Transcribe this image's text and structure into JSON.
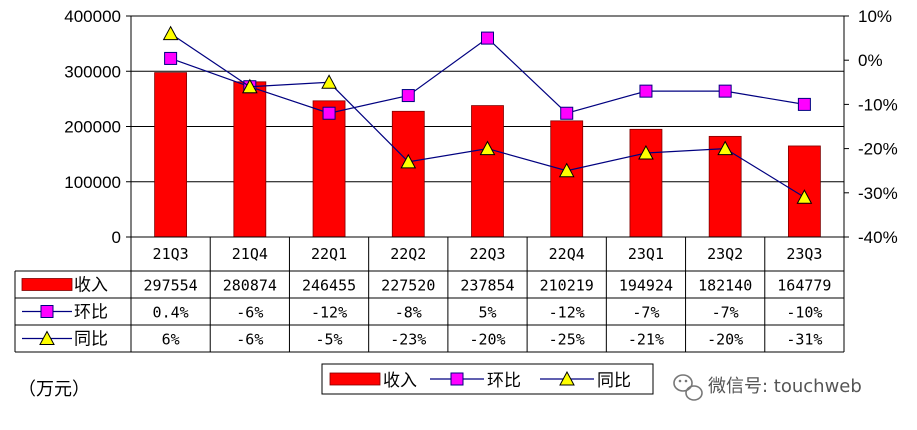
{
  "chart_data": {
    "type": "bar",
    "categories": [
      "21Q3",
      "21Q4",
      "22Q1",
      "22Q2",
      "22Q3",
      "22Q4",
      "23Q1",
      "23Q2",
      "23Q3"
    ],
    "series": [
      {
        "name": "收入",
        "kind": "bar",
        "axis": "left",
        "color": "#ff0000",
        "values": [
          297554,
          280874,
          246455,
          227520,
          237854,
          210219,
          194924,
          182140,
          164779
        ],
        "labels": [
          "297554",
          "280874",
          "246455",
          "227520",
          "237854",
          "210219",
          "194924",
          "182140",
          "164779"
        ]
      },
      {
        "name": "环比",
        "kind": "line",
        "axis": "right",
        "marker": "square",
        "color": "#ff00ff",
        "values": [
          0.4,
          -6,
          -12,
          -8,
          5,
          -12,
          -7,
          -7,
          -10
        ],
        "labels": [
          "0.4%",
          "-6%",
          "-12%",
          "-8%",
          "5%",
          "-12%",
          "-7%",
          "-7%",
          "-10%"
        ]
      },
      {
        "name": "同比",
        "kind": "line",
        "axis": "right",
        "marker": "triangle",
        "color": "#ffff00",
        "values": [
          6,
          -6,
          -5,
          -23,
          -20,
          -25,
          -21,
          -20,
          -31
        ],
        "labels": [
          "6%",
          "-6%",
          "-5%",
          "-23%",
          "-20%",
          "-25%",
          "-21%",
          "-20%",
          "-31%"
        ]
      }
    ],
    "left_axis": {
      "ylim": [
        0,
        400000
      ],
      "ticks": [
        "0",
        "100000",
        "200000",
        "300000",
        "400000"
      ]
    },
    "right_axis": {
      "ylim": [
        -40,
        10
      ],
      "ticks": [
        "-40%",
        "-30%",
        "-20%",
        "-10%",
        "0%",
        "10%"
      ]
    },
    "grid": true,
    "legend_position": "bottom",
    "unit_label": "（万元）"
  },
  "watermark": {
    "text": "微信号: touchweb",
    "icon": "wechat-icon"
  }
}
